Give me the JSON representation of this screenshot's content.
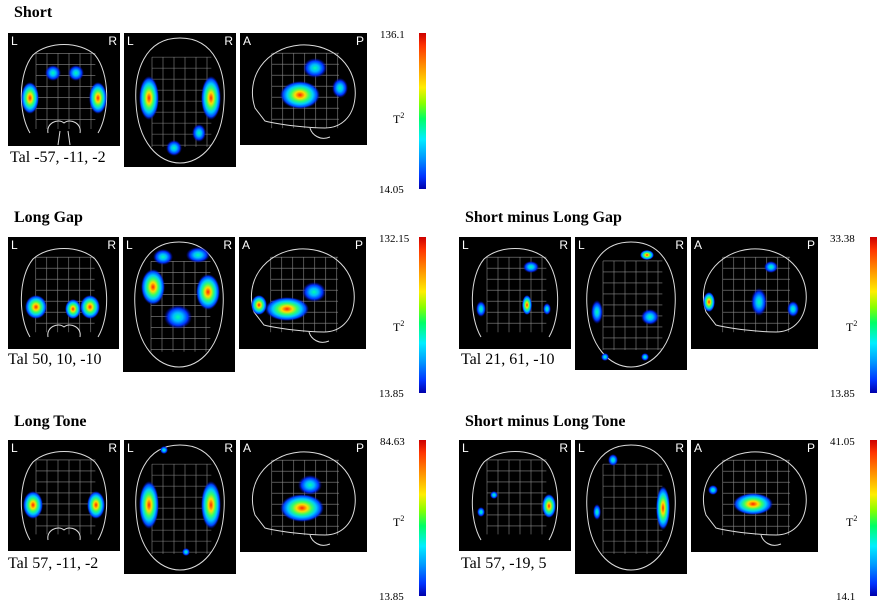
{
  "panels": [
    {
      "title": "Short",
      "coords": "Tal -57, -11, -2",
      "colorbar": {
        "max": "136.1",
        "min": "14.05",
        "label": "T",
        "sup": "2"
      },
      "views": [
        {
          "l": "L",
          "r": "R",
          "type": "coronal"
        },
        {
          "l": "L",
          "r": "R",
          "type": "axial"
        },
        {
          "l": "A",
          "r": "P",
          "type": "sagittal"
        }
      ]
    },
    {
      "title": "Long Gap",
      "coords": "Tal 50, 10, -10",
      "colorbar": {
        "max": "132.15",
        "min": "13.85",
        "label": "T",
        "sup": "2"
      },
      "views": [
        {
          "l": "L",
          "r": "R",
          "type": "coronal"
        },
        {
          "l": "L",
          "r": "R",
          "type": "axial"
        },
        {
          "l": "A",
          "r": "P",
          "type": "sagittal"
        }
      ]
    },
    {
      "title": "Short minus Long Gap",
      "coords": "Tal 21, 61, -10",
      "colorbar": {
        "max": "33.38",
        "min": "13.85",
        "label": "T",
        "sup": "2"
      },
      "views": [
        {
          "l": "L",
          "r": "R",
          "type": "coronal"
        },
        {
          "l": "L",
          "r": "R",
          "type": "axial"
        },
        {
          "l": "A",
          "r": "P",
          "type": "sagittal"
        }
      ]
    },
    {
      "title": "Long Tone",
      "coords": "Tal 57, -11, -2",
      "colorbar": {
        "max": "84.63",
        "min": "13.85",
        "label": "T",
        "sup": "2"
      },
      "views": [
        {
          "l": "L",
          "r": "R",
          "type": "coronal"
        },
        {
          "l": "L",
          "r": "R",
          "type": "axial"
        },
        {
          "l": "A",
          "r": "P",
          "type": "sagittal"
        }
      ]
    },
    {
      "title": "Short minus Long Tone",
      "coords": "Tal 57, -19, 5",
      "colorbar": {
        "max": "41.05",
        "min": "14.1",
        "label": "T",
        "sup": "2"
      },
      "views": [
        {
          "l": "L",
          "r": "R",
          "type": "coronal"
        },
        {
          "l": "L",
          "r": "R",
          "type": "axial"
        },
        {
          "l": "A",
          "r": "P",
          "type": "sagittal"
        }
      ]
    }
  ]
}
